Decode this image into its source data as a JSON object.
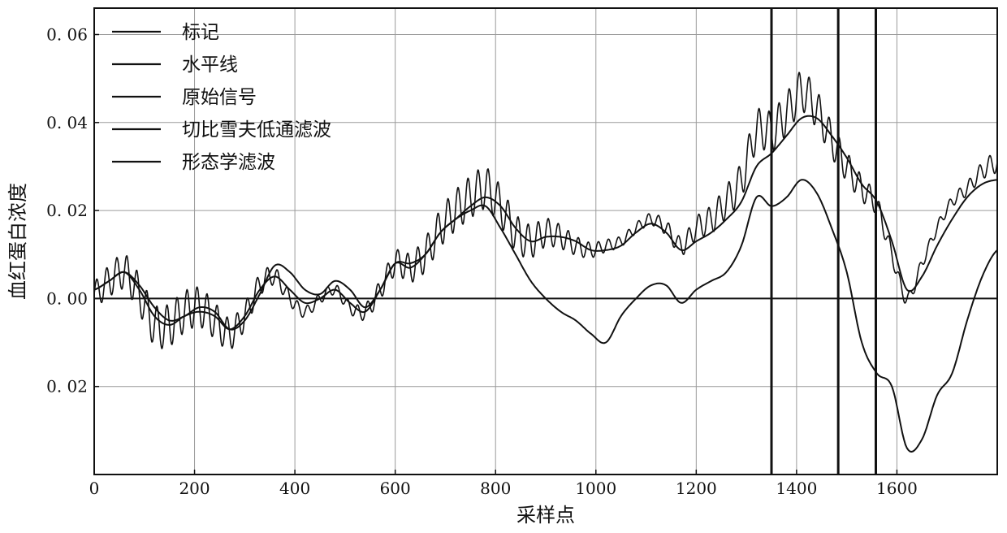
{
  "chart_data": {
    "type": "line",
    "xlabel": "采样点",
    "ylabel": "血红蛋白浓度",
    "xlim": [
      0,
      1800
    ],
    "ylim": [
      -0.04,
      0.066
    ],
    "grid": true,
    "legend_position": "top-left",
    "xticks": [
      0,
      200,
      400,
      600,
      800,
      1000,
      1200,
      1400,
      1600
    ],
    "xtick_labels": [
      "0",
      "200",
      "400",
      "600",
      "800",
      "1000",
      "1200",
      "1400",
      "1600"
    ],
    "yticks": [
      0.06,
      0.04,
      0.02,
      0.0,
      -0.02
    ],
    "ytick_labels": [
      "0. 06",
      "0. 04",
      "0. 02",
      "0. 00",
      "\u00030. 02"
    ],
    "legend": [
      "标记",
      "水平线",
      "原始信号",
      "切比雪夫低通滤波",
      "形态学滤波"
    ],
    "line_color": "#111111",
    "markers_x": [
      1350,
      1483,
      1558
    ],
    "horizontal_line_y": 0.0,
    "series": [
      {
        "name": "原始信号",
        "oscillation_amplitude": 0.003,
        "oscillation_period": 20,
        "x": [
          0,
          30,
          60,
          90,
          120,
          150,
          180,
          210,
          240,
          270,
          300,
          330,
          360,
          390,
          420,
          450,
          480,
          510,
          540,
          570,
          600,
          630,
          660,
          690,
          720,
          750,
          780,
          810,
          840,
          870,
          900,
          930,
          960,
          990,
          1020,
          1050,
          1080,
          1110,
          1140,
          1170,
          1200,
          1230,
          1260,
          1290,
          1320,
          1350,
          1380,
          1410,
          1440,
          1470,
          1500,
          1530,
          1560,
          1590,
          1620,
          1650,
          1680,
          1710,
          1740,
          1770,
          1800
        ],
        "y": [
          0.001,
          0.004,
          0.006,
          0.001,
          -0.006,
          -0.006,
          -0.003,
          -0.002,
          -0.005,
          -0.008,
          -0.004,
          0.003,
          0.005,
          0.0,
          -0.003,
          0.0,
          0.002,
          -0.002,
          -0.003,
          0.002,
          0.008,
          0.007,
          0.01,
          0.016,
          0.02,
          0.023,
          0.025,
          0.021,
          0.015,
          0.013,
          0.015,
          0.014,
          0.012,
          0.011,
          0.012,
          0.013,
          0.016,
          0.018,
          0.016,
          0.012,
          0.016,
          0.018,
          0.022,
          0.027,
          0.038,
          0.038,
          0.042,
          0.047,
          0.043,
          0.036,
          0.03,
          0.025,
          0.021,
          0.01,
          0.0,
          0.008,
          0.016,
          0.022,
          0.025,
          0.029,
          0.031
        ]
      },
      {
        "name": "切比雪夫低通滤波",
        "x": [
          0,
          30,
          60,
          90,
          120,
          150,
          180,
          210,
          240,
          270,
          300,
          330,
          360,
          390,
          420,
          450,
          480,
          510,
          540,
          570,
          600,
          630,
          660,
          690,
          720,
          750,
          780,
          810,
          840,
          870,
          900,
          930,
          960,
          990,
          1020,
          1050,
          1080,
          1110,
          1140,
          1170,
          1200,
          1230,
          1260,
          1290,
          1320,
          1350,
          1380,
          1410,
          1440,
          1470,
          1500,
          1530,
          1560,
          1590,
          1620,
          1650,
          1680,
          1710,
          1740,
          1770,
          1800
        ],
        "y": [
          0.002,
          0.004,
          0.006,
          0.003,
          -0.002,
          -0.005,
          -0.004,
          -0.002,
          -0.003,
          -0.007,
          -0.005,
          0.001,
          0.0075,
          0.006,
          0.002,
          0.001,
          0.004,
          0.002,
          -0.002,
          0.002,
          0.008,
          0.008,
          0.01,
          0.015,
          0.018,
          0.021,
          0.023,
          0.021,
          0.016,
          0.013,
          0.014,
          0.014,
          0.013,
          0.011,
          0.011,
          0.012,
          0.015,
          0.017,
          0.015,
          0.011,
          0.013,
          0.015,
          0.018,
          0.022,
          0.03,
          0.033,
          0.037,
          0.041,
          0.041,
          0.037,
          0.032,
          0.026,
          0.022,
          0.013,
          0.002,
          0.005,
          0.012,
          0.018,
          0.023,
          0.026,
          0.027
        ]
      },
      {
        "name": "形态学滤波",
        "x": [
          0,
          30,
          60,
          90,
          120,
          150,
          180,
          210,
          240,
          270,
          300,
          330,
          360,
          390,
          420,
          450,
          480,
          510,
          540,
          570,
          600,
          630,
          660,
          690,
          720,
          750,
          780,
          810,
          840,
          870,
          900,
          930,
          960,
          990,
          1020,
          1050,
          1080,
          1110,
          1140,
          1170,
          1200,
          1230,
          1260,
          1290,
          1320,
          1350,
          1380,
          1410,
          1440,
          1470,
          1500,
          1530,
          1560,
          1590,
          1620,
          1650,
          1680,
          1710,
          1740,
          1770,
          1800
        ],
        "y": [
          0.002,
          0.004,
          0.006,
          0.002,
          -0.004,
          -0.006,
          -0.004,
          -0.003,
          -0.004,
          -0.007,
          -0.004,
          0.002,
          0.005,
          0.002,
          -0.001,
          0.0,
          0.002,
          -0.001,
          -0.003,
          0.002,
          0.008,
          0.007,
          0.01,
          0.015,
          0.018,
          0.02,
          0.021,
          0.016,
          0.01,
          0.004,
          0.0,
          -0.003,
          -0.005,
          -0.008,
          -0.01,
          -0.004,
          0.0,
          0.003,
          0.003,
          -0.001,
          0.002,
          0.004,
          0.006,
          0.012,
          0.023,
          0.021,
          0.023,
          0.027,
          0.024,
          0.016,
          0.006,
          -0.01,
          -0.017,
          -0.02,
          -0.034,
          -0.032,
          -0.022,
          -0.017,
          -0.005,
          0.005,
          0.011
        ]
      }
    ]
  }
}
